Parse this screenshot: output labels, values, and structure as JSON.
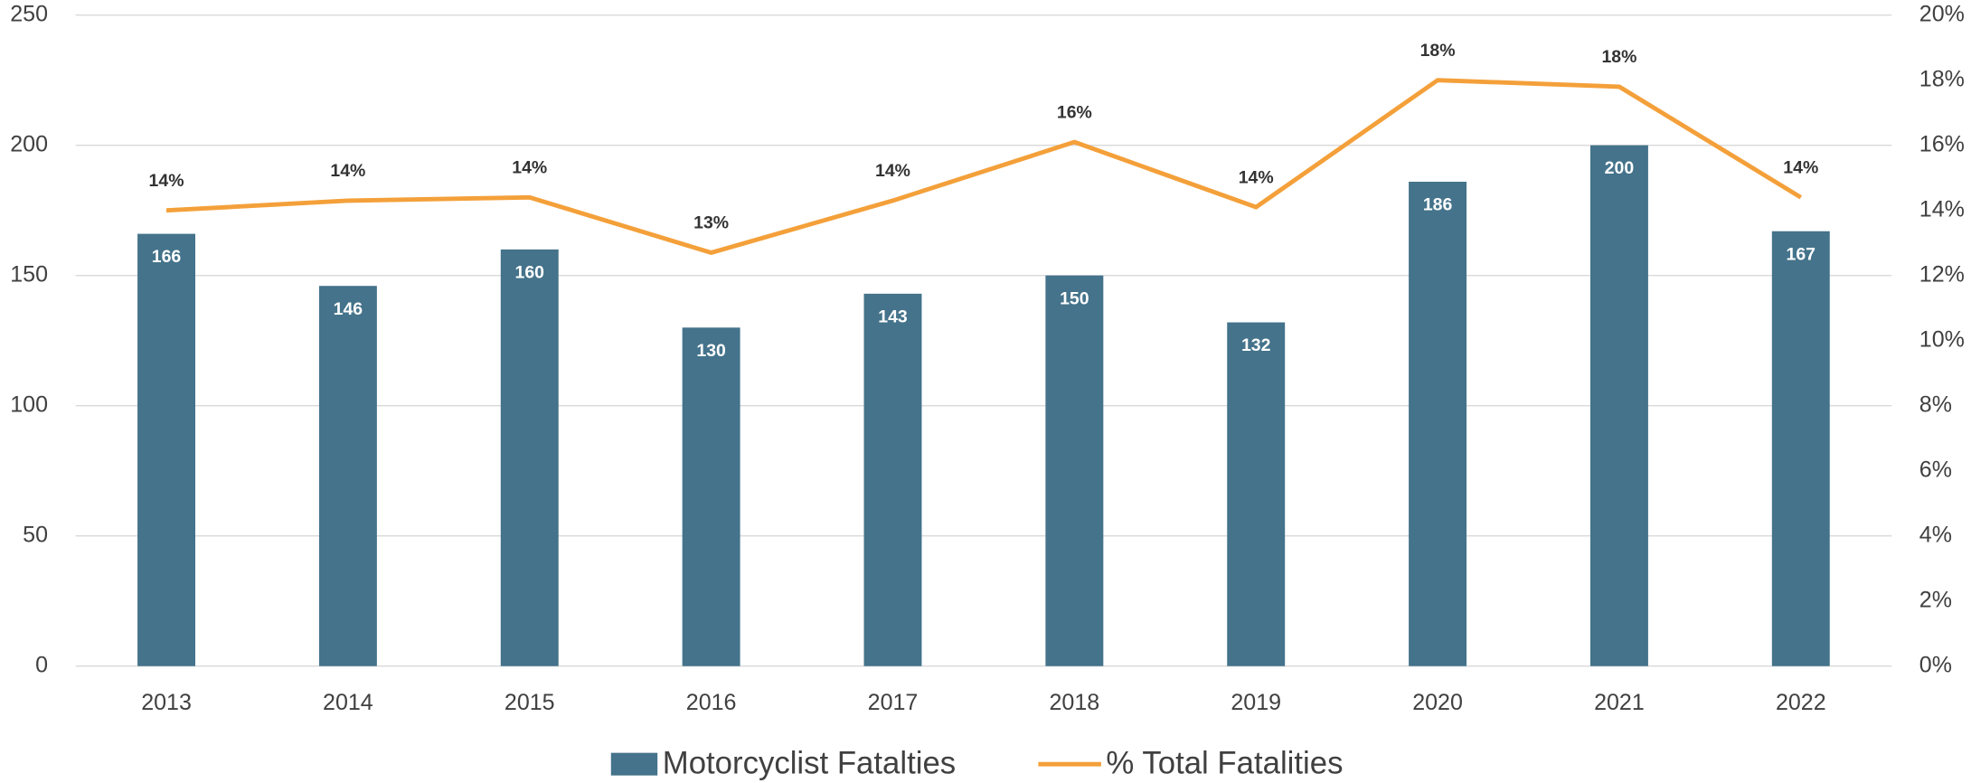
{
  "chart_data": {
    "type": "bar-line",
    "categories": [
      "2013",
      "2014",
      "2015",
      "2016",
      "2017",
      "2018",
      "2019",
      "2020",
      "2021",
      "2022"
    ],
    "series": [
      {
        "name": "Motorcyclist Fatalties",
        "color": "#44738b",
        "type": "bar",
        "values": [
          166,
          146,
          160,
          130,
          143,
          150,
          132,
          186,
          200,
          167
        ]
      },
      {
        "name": "% Total Fatalities",
        "color": "#f4a03a",
        "type": "line",
        "axis": "y2",
        "values": [
          14.0,
          14.3,
          14.4,
          12.7,
          14.3,
          16.1,
          14.1,
          18.0,
          17.8,
          14.4
        ],
        "value_labels": [
          "14%",
          "14%",
          "14%",
          "13%",
          "14%",
          "16%",
          "14%",
          "18%",
          "18%",
          "14%"
        ]
      }
    ],
    "ylim": [
      0,
      250
    ],
    "yticks": [
      0,
      50,
      100,
      150,
      200,
      250
    ],
    "y2lim": [
      0,
      20
    ],
    "y2ticks": [
      {
        "value": 0,
        "label": "0%"
      },
      {
        "value": 2,
        "label": "2%"
      },
      {
        "value": 4,
        "label": "4%"
      },
      {
        "value": 6,
        "label": "6%"
      },
      {
        "value": 8,
        "label": "8%"
      },
      {
        "value": 10,
        "label": "10%"
      },
      {
        "value": 12,
        "label": "12%"
      },
      {
        "value": 14,
        "label": "14%"
      },
      {
        "value": 16,
        "label": "16%"
      },
      {
        "value": 18,
        "label": "18%"
      },
      {
        "value": 20,
        "label": "20%"
      }
    ],
    "grid": true,
    "legend": "bottom"
  }
}
